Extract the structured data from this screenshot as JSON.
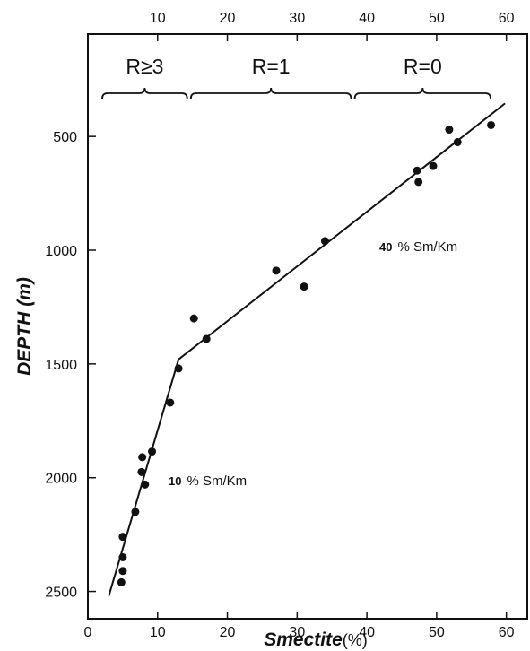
{
  "chart_data": {
    "type": "scatter",
    "xlabel": "Smectite",
    "xunit": "(%)",
    "ylabel": "DEPTH",
    "yunit": "(m)",
    "xlim": [
      0,
      63
    ],
    "ylim": [
      2620,
      50
    ],
    "x_ticks_bottom": [
      0,
      10,
      20,
      30,
      40,
      50,
      60
    ],
    "x_ticks_top": [
      10,
      20,
      30,
      40,
      50,
      60
    ],
    "y_ticks": [
      500,
      1000,
      1500,
      2000,
      2500
    ],
    "grid": false,
    "points": [
      {
        "x": 5.0,
        "y": 2260
      },
      {
        "x": 5.0,
        "y": 2350
      },
      {
        "x": 5.0,
        "y": 2410
      },
      {
        "x": 4.8,
        "y": 2460
      },
      {
        "x": 6.8,
        "y": 2150
      },
      {
        "x": 7.8,
        "y": 1910
      },
      {
        "x": 7.7,
        "y": 1975
      },
      {
        "x": 8.2,
        "y": 2030
      },
      {
        "x": 9.2,
        "y": 1885
      },
      {
        "x": 11.8,
        "y": 1670
      },
      {
        "x": 13.0,
        "y": 1520
      },
      {
        "x": 15.2,
        "y": 1300
      },
      {
        "x": 17.0,
        "y": 1390
      },
      {
        "x": 27.0,
        "y": 1090
      },
      {
        "x": 31.0,
        "y": 1160
      },
      {
        "x": 34.0,
        "y": 960
      },
      {
        "x": 47.2,
        "y": 650
      },
      {
        "x": 47.4,
        "y": 700
      },
      {
        "x": 49.5,
        "y": 630
      },
      {
        "x": 51.8,
        "y": 470
      },
      {
        "x": 53.0,
        "y": 525
      },
      {
        "x": 57.8,
        "y": 450
      }
    ],
    "fit_lines": [
      {
        "x": [
          3.0,
          13.0
        ],
        "y": [
          2520,
          1480
        ]
      },
      {
        "x": [
          13.0,
          59.8
        ],
        "y": [
          1480,
          355
        ]
      }
    ],
    "regions": [
      {
        "label": "R≥3",
        "x_start": 1.8,
        "x_end": 14.5
      },
      {
        "label": "R=1",
        "x_start": 14.5,
        "x_end": 38.0
      },
      {
        "label": "R=0",
        "x_start": 38.0,
        "x_end": 58.0
      }
    ],
    "annotations": [
      {
        "number": "40",
        "text": "% Sm/Km",
        "x": 41.0,
        "y": 980
      },
      {
        "number": "10",
        "text": "% Sm/Km",
        "x": 12.0,
        "y": 2035
      }
    ]
  }
}
